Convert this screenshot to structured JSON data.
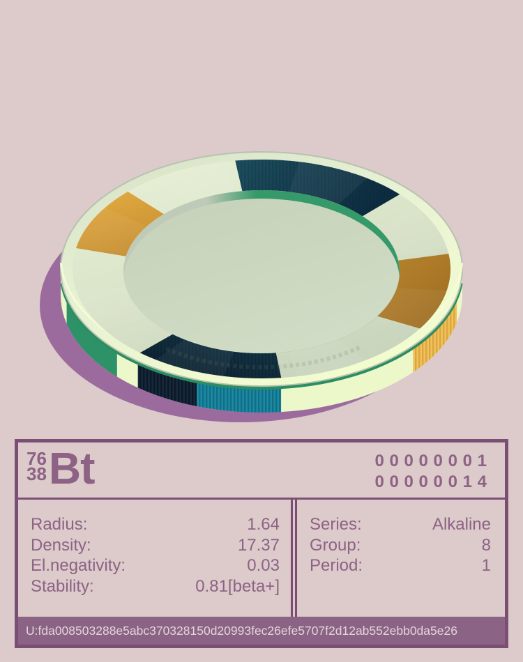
{
  "scene": {
    "background_color": "#dccbca"
  },
  "coin": {
    "palette": {
      "shadow": "#9c6b9e",
      "side": "#ecf7ca",
      "bevel_dark": "#d5e0c6",
      "bevel_light": "#e8f2d4",
      "bevel_bright": "#f3fccf",
      "face_light": "#e9f2d8",
      "face_mid": "#dbe5ca",
      "face_dark": "#c9d5bd",
      "disc_dark": "#c5d1b8",
      "disc_light": "#d0dcc5",
      "hole_wall_gray": "#c0cab8",
      "hole_wall_green": "#35996a",
      "edge_green": "#2c8d60",
      "rim_line": "#b7c2b0",
      "highlight": "#f4fcd6",
      "engraving": "#707c66"
    },
    "face_segments": [
      {
        "name": "navy-top",
        "start": 262,
        "end": 317,
        "color1": "#1e5060",
        "color2": "#0d2c40",
        "dir": [
          0,
          0,
          1,
          0.3
        ],
        "stripes": true,
        "stripe_color": "#0a2433"
      },
      {
        "name": "orange-left",
        "start": 191,
        "end": 225,
        "color1": "#e3ab42",
        "color2": "#c68e30",
        "dir": [
          0.2,
          0,
          0.6,
          1
        ],
        "stripes": false,
        "stripe_color": ""
      },
      {
        "name": "orange-right",
        "start": 352,
        "end": 393,
        "color1": "#b8852e",
        "color2": "#9e6d22",
        "dir": [
          0,
          0,
          0.8,
          1
        ],
        "stripes": false,
        "stripe_color": ""
      },
      {
        "name": "navy-bottom",
        "start": 84,
        "end": 130,
        "color1": "#173c4e",
        "color2": "#0a1d2b",
        "dir": [
          1,
          0,
          0,
          1
        ],
        "stripes": true,
        "stripe_color": "#05121d"
      }
    ],
    "side_segments": [
      {
        "name": "green-left",
        "start": 136,
        "end": 166,
        "color": "#2e9268",
        "stripes": false,
        "stripe_color": ""
      },
      {
        "name": "navy-side",
        "start": 108.8,
        "end": 128,
        "color": "#16293a",
        "stripes": true,
        "stripe_color": "#070f1c"
      },
      {
        "name": "teal-side",
        "start": 84.4,
        "end": 108.8,
        "color": "#1c89a2",
        "stripes": true,
        "stripe_color": "#0d6079"
      },
      {
        "name": "yellow-side",
        "start": 13.5,
        "end": 41,
        "color": "#eec25c",
        "stripes": true,
        "stripe_color": "#d5952f"
      }
    ]
  },
  "card": {
    "border_color": "#7b4f75",
    "text_color": "#8d6285",
    "header": {
      "mass_number": "76",
      "atomic_number": "38",
      "symbol": "Bt",
      "code_line1": "00000001",
      "code_line2": "00000014"
    },
    "properties": [
      {
        "label": "Radius:",
        "value": "1.64"
      },
      {
        "label": "Density:",
        "value": "17.37"
      },
      {
        "label": "El.negativity:",
        "value": "0.03"
      },
      {
        "label": "Stability:",
        "value": "0.81[beta+]"
      }
    ],
    "classification": [
      {
        "label": "Series:",
        "value": "Alkaline"
      },
      {
        "label": "Group:",
        "value": "8"
      },
      {
        "label": "Period:",
        "value": "1"
      }
    ],
    "footer": {
      "hash": "U:fda008503288e5abc370328150d20993fec26efe5707f2d12ab552ebb0da5e26",
      "bar_color": "#8b6384",
      "text_color": "#e3d4da"
    }
  }
}
